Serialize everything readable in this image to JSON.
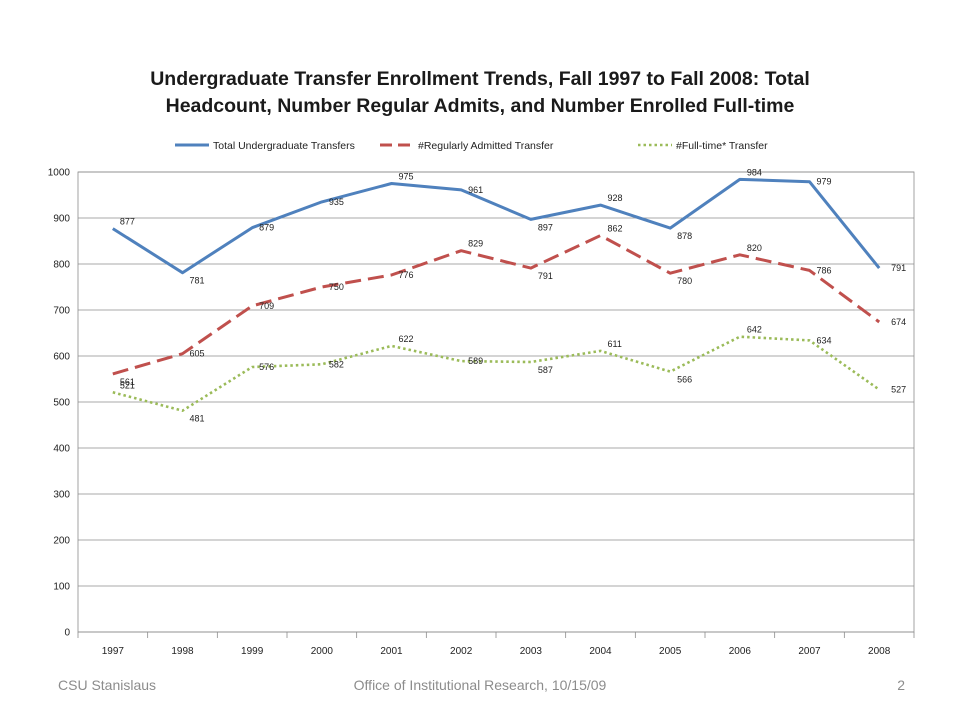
{
  "chart_data": {
    "type": "line",
    "title_line1": "Undergraduate Transfer Enrollment Trends, Fall 1997 to Fall 2008: Total",
    "title_line2": "Headcount, Number Regular Admits, and Number Enrolled Full-time",
    "categories": [
      "1997",
      "1998",
      "1999",
      "2000",
      "2001",
      "2002",
      "2003",
      "2004",
      "2005",
      "2006",
      "2007",
      "2008"
    ],
    "ylim": [
      0,
      1000
    ],
    "yticks": [
      0,
      100,
      200,
      300,
      400,
      500,
      600,
      700,
      800,
      900,
      1000
    ],
    "grid": true,
    "legend_position": "top",
    "series": [
      {
        "name": "Total Undergraduate Transfers",
        "color": "#4F81BD",
        "style": "solid",
        "values": [
          877,
          781,
          879,
          935,
          975,
          961,
          897,
          928,
          878,
          984,
          979,
          791
        ]
      },
      {
        "name": "#Regularly Admitted Transfer",
        "color": "#C0504D",
        "style": "dashed",
        "values": [
          561,
          605,
          709,
          750,
          776,
          829,
          791,
          862,
          780,
          820,
          786,
          674
        ]
      },
      {
        "name": "#Full-time* Transfer",
        "color": "#9BBB59",
        "style": "dotted",
        "values": [
          521,
          481,
          576,
          582,
          622,
          589,
          587,
          611,
          566,
          642,
          634,
          527
        ]
      }
    ]
  },
  "footer": {
    "left": "CSU Stanislaus",
    "center": "Office of Institutional Research, 10/15/09",
    "page": "2"
  }
}
